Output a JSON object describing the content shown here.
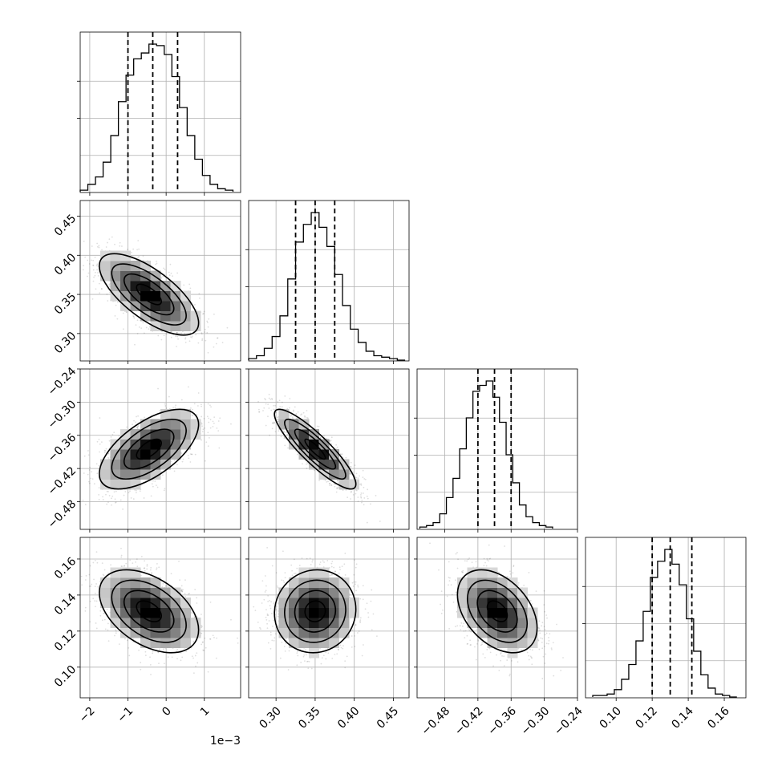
{
  "chart_data": {
    "type": "corner",
    "params": [
      {
        "range": [
          -2.25,
          1.95
        ],
        "ticks": [
          -2,
          -1,
          0,
          1
        ],
        "tick_labels": [
          "−2",
          "−1",
          "0",
          "1"
        ],
        "offset_label": "1e−3",
        "quantiles": [
          -1.0,
          -0.35,
          0.3
        ],
        "hist": {
          "edges": [
            -2.25,
            -2.05,
            -1.85,
            -1.65,
            -1.45,
            -1.25,
            -1.05,
            -0.85,
            -0.65,
            -0.45,
            -0.25,
            -0.05,
            0.15,
            0.35,
            0.55,
            0.75,
            0.95,
            1.15,
            1.35,
            1.55,
            1.75
          ],
          "values": [
            0.01,
            0.05,
            0.1,
            0.2,
            0.38,
            0.61,
            0.79,
            0.9,
            0.94,
            1.0,
            0.99,
            0.93,
            0.78,
            0.57,
            0.38,
            0.22,
            0.11,
            0.05,
            0.02,
            0.01
          ]
        }
      },
      {
        "range": [
          0.265,
          0.47
        ],
        "ticks": [
          0.3,
          0.35,
          0.4,
          0.45
        ],
        "tick_labels": [
          "0.30",
          "0.35",
          "0.40",
          "0.45"
        ],
        "quantiles": [
          0.325,
          0.35,
          0.375
        ],
        "hist": {
          "edges": [
            0.265,
            0.275,
            0.285,
            0.295,
            0.305,
            0.315,
            0.325,
            0.335,
            0.345,
            0.355,
            0.365,
            0.375,
            0.385,
            0.395,
            0.405,
            0.415,
            0.425,
            0.435,
            0.445,
            0.455,
            0.465
          ],
          "values": [
            0.01,
            0.03,
            0.08,
            0.16,
            0.3,
            0.55,
            0.8,
            0.92,
            1.0,
            0.9,
            0.77,
            0.58,
            0.37,
            0.21,
            0.12,
            0.06,
            0.03,
            0.02,
            0.01,
            0.0
          ]
        }
      },
      {
        "range": [
          -0.53,
          -0.24
        ],
        "ticks": [
          -0.48,
          -0.42,
          -0.36,
          -0.3,
          -0.24
        ],
        "tick_labels": [
          "−0.48",
          "−0.42",
          "−0.36",
          "−0.30",
          "−0.24"
        ],
        "quantiles": [
          -0.42,
          -0.39,
          -0.36
        ],
        "hist": {
          "edges": [
            -0.525,
            -0.513,
            -0.501,
            -0.489,
            -0.477,
            -0.465,
            -0.453,
            -0.441,
            -0.429,
            -0.417,
            -0.405,
            -0.393,
            -0.381,
            -0.369,
            -0.357,
            -0.345,
            -0.333,
            -0.321,
            -0.309,
            -0.297,
            -0.285
          ],
          "values": [
            0.01,
            0.02,
            0.04,
            0.1,
            0.21,
            0.34,
            0.54,
            0.75,
            0.93,
            0.97,
            1.0,
            0.89,
            0.72,
            0.5,
            0.31,
            0.16,
            0.08,
            0.04,
            0.02,
            0.01
          ]
        }
      },
      {
        "range": [
          0.083,
          0.172
        ],
        "ticks": [
          0.1,
          0.12,
          0.14,
          0.16
        ],
        "tick_labels": [
          "0.10",
          "0.12",
          "0.14",
          "0.16"
        ],
        "quantiles": [
          0.12,
          0.13,
          0.142
        ],
        "hist": {
          "edges": [
            0.087,
            0.091,
            0.095,
            0.099,
            0.103,
            0.107,
            0.111,
            0.115,
            0.119,
            0.123,
            0.127,
            0.131,
            0.135,
            0.139,
            0.143,
            0.147,
            0.151,
            0.155,
            0.159,
            0.163,
            0.167
          ],
          "values": [
            0.01,
            0.01,
            0.02,
            0.05,
            0.12,
            0.22,
            0.38,
            0.58,
            0.81,
            0.92,
            1.0,
            0.9,
            0.76,
            0.53,
            0.31,
            0.15,
            0.06,
            0.02,
            0.01,
            0.0
          ]
        }
      }
    ],
    "pairs": [
      {
        "x": 0,
        "y": 1,
        "center": [
          -0.45,
          0.35
        ],
        "sigma": [
          0.65,
          0.026
        ],
        "corr": -0.7
      },
      {
        "x": 0,
        "y": 2,
        "center": [
          -0.45,
          -0.385
        ],
        "sigma": [
          0.65,
          0.036
        ],
        "corr": 0.62
      },
      {
        "x": 1,
        "y": 2,
        "center": [
          0.35,
          -0.385
        ],
        "sigma": [
          0.026,
          0.036
        ],
        "corr": -0.88
      },
      {
        "x": 0,
        "y": 3,
        "center": [
          -0.45,
          0.131
        ],
        "sigma": [
          0.65,
          0.0115
        ],
        "corr": -0.45
      },
      {
        "x": 1,
        "y": 3,
        "center": [
          0.35,
          0.131
        ],
        "sigma": [
          0.026,
          0.0115
        ],
        "corr": 0.05
      },
      {
        "x": 2,
        "y": 3,
        "center": [
          -0.385,
          0.131
        ],
        "sigma": [
          0.036,
          0.0115
        ],
        "corr": -0.4
      }
    ],
    "contour_levels_sigma": [
      0.5,
      1.0,
      1.5,
      2.0
    ],
    "grid": true
  }
}
